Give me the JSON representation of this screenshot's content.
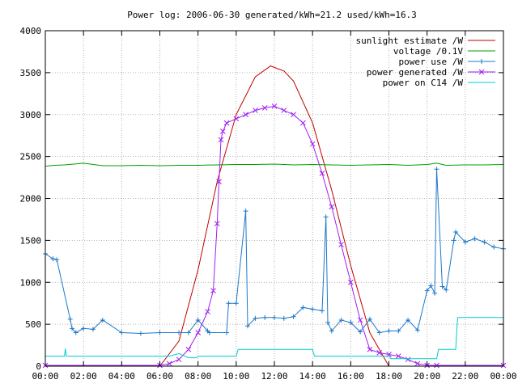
{
  "chart_data": {
    "type": "line",
    "title": "Power log: 2006-06-30 generated/kWh=21.2 used/kWh=16.3",
    "xlabel": "",
    "ylabel": "",
    "xlim": [
      0,
      24
    ],
    "ylim": [
      0,
      4000
    ],
    "grid": true,
    "legend_placement": "top-right",
    "x_ticks": [
      "00:00",
      "02:00",
      "04:00",
      "06:00",
      "08:00",
      "10:00",
      "12:00",
      "14:00",
      "16:00",
      "18:00",
      "20:00",
      "22:00",
      "00:00"
    ],
    "y_ticks": [
      "0",
      "500",
      "1000",
      "1500",
      "2000",
      "2500",
      "3000",
      "3500",
      "4000"
    ],
    "y_tick_values": [
      0,
      500,
      1000,
      1500,
      2000,
      2500,
      3000,
      3500,
      4000
    ],
    "series": [
      {
        "name": "sunlight estimate /W",
        "color": "#c00000",
        "style": "line",
        "x": [
          6.0,
          7.0,
          8.0,
          9.0,
          10.0,
          11.0,
          11.8,
          12.5,
          13.0,
          14.0,
          15.0,
          16.0,
          17.0,
          18.0
        ],
        "y": [
          0,
          300,
          1150,
          2200,
          3000,
          3450,
          3580,
          3520,
          3400,
          2900,
          2100,
          1200,
          400,
          0
        ]
      },
      {
        "name": "voltage /0.1V",
        "color": "#00a000",
        "style": "line",
        "x": [
          0,
          0.5,
          1.0,
          1.5,
          2.0,
          3.0,
          4.0,
          5.0,
          6.0,
          7.0,
          8.0,
          9.0,
          10.0,
          11.0,
          12.0,
          13.0,
          14.0,
          15.0,
          16.0,
          17.0,
          18.0,
          19.0,
          20.0,
          20.5,
          21.0,
          22.0,
          23.0,
          24.0
        ],
        "y": [
          2385,
          2395,
          2400,
          2410,
          2420,
          2390,
          2390,
          2395,
          2390,
          2395,
          2395,
          2400,
          2405,
          2405,
          2410,
          2400,
          2405,
          2400,
          2395,
          2400,
          2405,
          2395,
          2405,
          2420,
          2395,
          2400,
          2400,
          2405
        ]
      },
      {
        "name": "power use /W",
        "color": "#1e78c8",
        "style": "line+plus",
        "x": [
          0,
          0.4,
          0.6,
          1.3,
          1.4,
          1.6,
          2.0,
          2.5,
          3.0,
          4.0,
          5.0,
          6.0,
          7.0,
          7.5,
          8.0,
          8.5,
          8.6,
          9.5,
          9.6,
          10.0,
          10.5,
          10.6,
          11.0,
          11.5,
          12.0,
          12.5,
          13.0,
          13.5,
          14.0,
          14.5,
          14.7,
          14.8,
          15.0,
          15.5,
          16.0,
          16.5,
          17.0,
          17.5,
          18.0,
          18.5,
          19.0,
          19.5,
          20.0,
          20.2,
          20.4,
          20.5,
          20.8,
          21.0,
          21.4,
          21.5,
          22.0,
          22.5,
          23.0,
          23.5,
          24.0
        ],
        "y": [
          1340,
          1280,
          1270,
          560,
          450,
          400,
          450,
          440,
          550,
          400,
          390,
          400,
          400,
          400,
          550,
          420,
          400,
          400,
          750,
          750,
          1850,
          480,
          570,
          580,
          580,
          570,
          590,
          700,
          680,
          660,
          1780,
          520,
          420,
          550,
          520,
          410,
          560,
          400,
          420,
          420,
          550,
          430,
          900,
          960,
          870,
          2350,
          950,
          910,
          1500,
          1600,
          1480,
          1520,
          1480,
          1420,
          1400
        ]
      },
      {
        "name": "power generated /W",
        "color": "#a020f0",
        "style": "line+cross",
        "x": [
          0,
          6.0,
          6.5,
          7.0,
          7.5,
          8.0,
          8.5,
          8.8,
          9.0,
          9.1,
          9.2,
          9.3,
          9.5,
          10.0,
          10.5,
          11.0,
          11.5,
          12.0,
          12.5,
          13.0,
          13.5,
          14.0,
          14.5,
          15.0,
          15.5,
          16.0,
          16.5,
          17.0,
          17.5,
          18.0,
          18.5,
          19.0,
          19.5,
          20.0,
          20.5,
          24.0
        ],
        "y": [
          10,
          10,
          30,
          80,
          200,
          400,
          650,
          900,
          1700,
          2200,
          2700,
          2800,
          2900,
          2950,
          3000,
          3050,
          3080,
          3100,
          3050,
          3000,
          2900,
          2650,
          2300,
          1900,
          1450,
          1000,
          550,
          200,
          160,
          140,
          120,
          80,
          30,
          10,
          10,
          10
        ]
      },
      {
        "name": "power on C14 /W",
        "color": "#00cccc",
        "style": "line",
        "x": [
          0,
          1.0,
          1.05,
          1.1,
          1.2,
          6.5,
          7.0,
          7.5,
          7.9,
          8.0,
          10.0,
          10.1,
          14.0,
          14.1,
          18.0,
          18.1,
          20.5,
          20.6,
          21.5,
          21.6,
          24.0
        ],
        "y": [
          120,
          120,
          210,
          120,
          120,
          120,
          150,
          100,
          100,
          120,
          120,
          200,
          200,
          120,
          120,
          90,
          90,
          200,
          200,
          580,
          580
        ]
      }
    ]
  }
}
